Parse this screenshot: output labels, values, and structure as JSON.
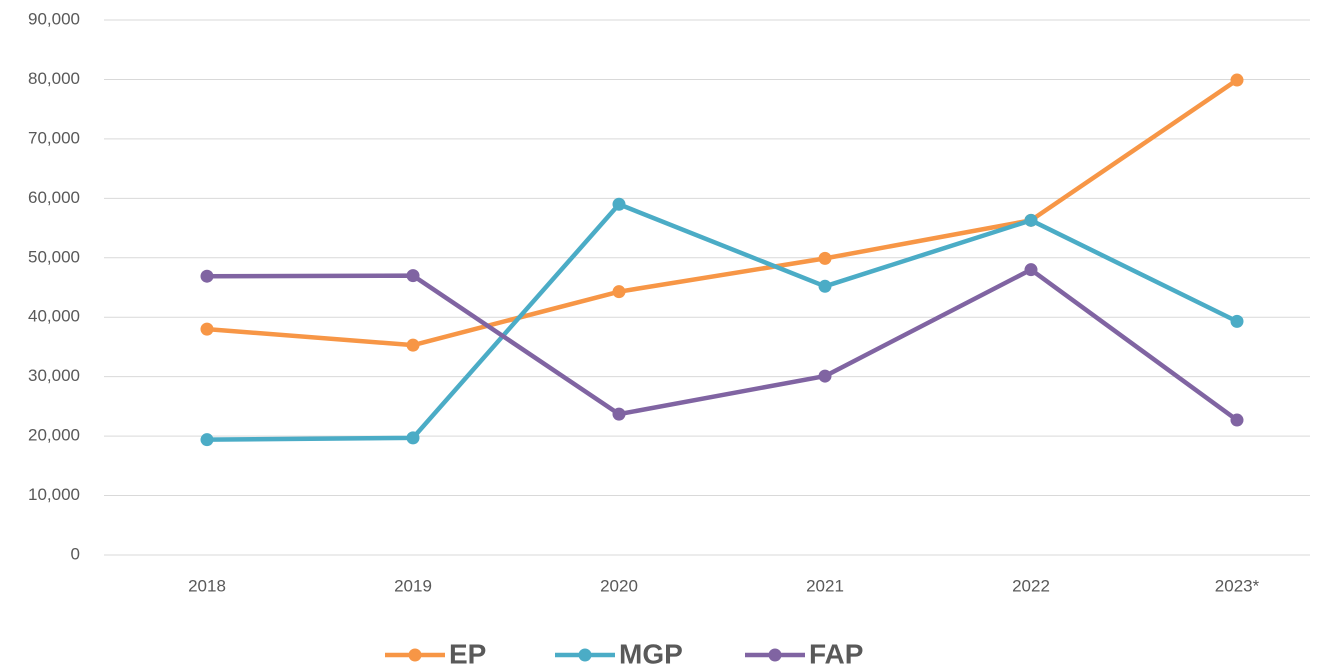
{
  "chart_data": {
    "type": "line",
    "categories": [
      "2018",
      "2019",
      "2020",
      "2021",
      "2022",
      "2023*"
    ],
    "series": [
      {
        "name": "EP",
        "color": "#f79646",
        "values": [
          38000,
          35300,
          44300,
          49900,
          56300,
          79900
        ]
      },
      {
        "name": "MGP",
        "color": "#4bacc6",
        "values": [
          19400,
          19700,
          59000,
          45200,
          56300,
          39300
        ]
      },
      {
        "name": "FAP",
        "color": "#8064a2",
        "values": [
          46900,
          47000,
          23700,
          30100,
          48000,
          22700
        ]
      }
    ],
    "ylim": [
      0,
      90000
    ],
    "yticks": [
      0,
      {
        "value": 10000,
        "label": "10,000"
      },
      {
        "value": 20000,
        "label": "20,000"
      },
      {
        "value": 30000,
        "label": "30,000"
      },
      {
        "value": 40000,
        "label": "40,000"
      },
      {
        "value": 50000,
        "label": "50,000"
      },
      {
        "value": 60000,
        "label": "60,000"
      },
      {
        "value": 70000,
        "label": "70,000"
      },
      {
        "value": 80000,
        "label": "80,000"
      },
      {
        "value": 90000,
        "label": "90,000"
      }
    ],
    "grid": true,
    "legend": "bottom"
  }
}
